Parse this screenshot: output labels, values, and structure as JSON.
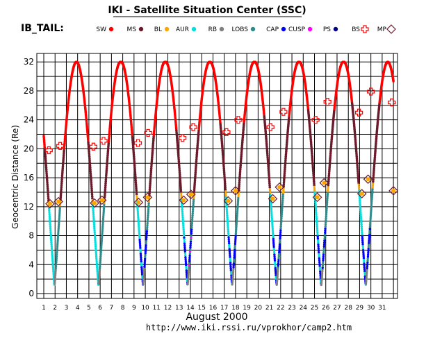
{
  "title": "IKI - Satellite Situation Center (SSC)",
  "mission_label": "IB_TAIL:",
  "url": "http://www.iki.rssi.ru/vprokhor/camp2.htm",
  "legend": [
    {
      "label": "SW",
      "color": "#ff0000",
      "marker": "dot"
    },
    {
      "label": "MS",
      "color": "#6b1a2a",
      "marker": "dot"
    },
    {
      "label": "BL",
      "color": "#ffa500",
      "marker": "dot"
    },
    {
      "label": "AUR",
      "color": "#00e0e0",
      "marker": "dot"
    },
    {
      "label": "RB",
      "color": "#7f7f7f",
      "marker": "dot"
    },
    {
      "label": "LOBS",
      "color": "#2e8b8b",
      "marker": "dot"
    },
    {
      "label": "CAP",
      "color": "#0000ff",
      "marker": "dot"
    },
    {
      "label": "CUSP",
      "color": "#ff00ff",
      "marker": "dot"
    },
    {
      "label": "PS",
      "color": "#000080",
      "marker": "dot"
    },
    {
      "label": "BS",
      "color": "#ff0000",
      "marker": "plus-square"
    },
    {
      "label": "MP",
      "color": "#6b1a2a",
      "marker": "diamond"
    }
  ],
  "chart_data": {
    "type": "line",
    "xlabel": "August   2000",
    "ylabel": "Geocentric  Distance  (Re)",
    "xlim": [
      1,
      32
    ],
    "ylim": [
      0,
      33
    ],
    "x_ticks": [
      "1",
      "2",
      "3",
      "4",
      "5",
      "6",
      "7",
      "8",
      "9",
      "10",
      "11",
      "12",
      "13",
      "14",
      "15",
      "16",
      "17",
      "18",
      "19",
      "20",
      "21",
      "22",
      "23",
      "24",
      "25",
      "26",
      "27",
      "28",
      "29",
      "30",
      "31"
    ],
    "y_ticks": [
      "0",
      "4",
      "8",
      "12",
      "16",
      "20",
      "24",
      "28",
      "32"
    ],
    "grid": true,
    "orbit_period_days": 3.9,
    "apogee_re": 32,
    "perigee_re": 1.2,
    "perigee_days": [
      1.95,
      5.85,
      9.8,
      13.75,
      17.7,
      21.65,
      25.6,
      29.55
    ],
    "apogee_days": [
      3.9,
      7.8,
      11.75,
      15.7,
      19.6,
      23.6,
      27.55,
      31.5
    ],
    "bow_shock_crossings": [
      {
        "day": 1.45,
        "re": 19.8
      },
      {
        "day": 2.45,
        "re": 20.4
      },
      {
        "day": 5.4,
        "re": 20.3
      },
      {
        "day": 6.3,
        "re": 21.1
      },
      {
        "day": 9.35,
        "re": 20.8
      },
      {
        "day": 10.25,
        "re": 22.2
      },
      {
        "day": 13.3,
        "re": 21.5
      },
      {
        "day": 14.25,
        "re": 23.0
      },
      {
        "day": 17.2,
        "re": 22.3
      },
      {
        "day": 18.25,
        "re": 24.0
      },
      {
        "day": 21.1,
        "re": 23.0
      },
      {
        "day": 22.25,
        "re": 25.1
      },
      {
        "day": 25.1,
        "re": 24.0
      },
      {
        "day": 26.15,
        "re": 26.5
      },
      {
        "day": 28.95,
        "re": 25.0
      },
      {
        "day": 30.0,
        "re": 27.9
      },
      {
        "day": 31.85,
        "re": 26.4
      }
    ],
    "magnetopause_crossings": [
      {
        "day": 1.55,
        "re": 12.4
      },
      {
        "day": 2.3,
        "re": 12.7
      },
      {
        "day": 5.5,
        "re": 12.5
      },
      {
        "day": 6.15,
        "re": 12.9
      },
      {
        "day": 9.4,
        "re": 12.6
      },
      {
        "day": 10.2,
        "re": 13.3
      },
      {
        "day": 13.4,
        "re": 12.9
      },
      {
        "day": 14.05,
        "re": 13.7
      },
      {
        "day": 17.35,
        "re": 12.8
      },
      {
        "day": 18.0,
        "re": 14.2
      },
      {
        "day": 21.3,
        "re": 13.1
      },
      {
        "day": 21.9,
        "re": 14.7
      },
      {
        "day": 25.25,
        "re": 13.3
      },
      {
        "day": 25.85,
        "re": 15.3
      },
      {
        "day": 29.2,
        "re": 13.8
      },
      {
        "day": 29.75,
        "re": 15.8
      },
      {
        "day": 32.0,
        "re": 14.2
      }
    ]
  }
}
